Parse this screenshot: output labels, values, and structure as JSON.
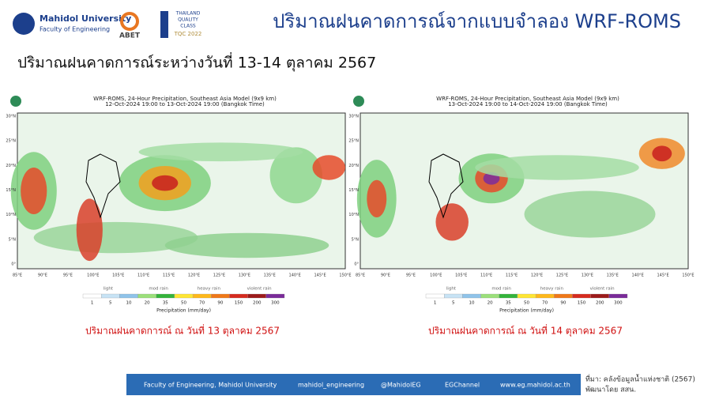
{
  "header": {
    "university": "Mahidol University",
    "faculty": "Faculty of Engineering",
    "abet": "ABET",
    "tqc_line1": "THAILAND",
    "tqc_line2": "QUALITY",
    "tqc_line3": "CLASS",
    "tqc_year": "TQC 2022",
    "title": "ปริมาณฝนคาดการณ์จากแบบจำลอง WRF-ROMS"
  },
  "subtitle": "ปริมาณฝนคาดการณ์ระหว่างวันที่ 13-14 ตุลาคม 2567",
  "maps": [
    {
      "title": "WRF-ROMS, 24-Hour Precipitation, Southeast Asia Model (9x9 km)",
      "period": "12-Oct-2024 19:00 to 13-Oct-2024 19:00 (Bangkok Time)",
      "caption": "ปริมาณฝนคาดการณ์ ณ วันที่ 13 ตุลาคม 2567"
    },
    {
      "title": "WRF-ROMS, 24-Hour Precipitation, Southeast Asia Model (9x9 km)",
      "period": "13-Oct-2024 19:00 to 14-Oct-2024 19:00 (Bangkok Time)",
      "caption": "ปริมาณฝนคาดการณ์ ณ วันที่ 14 ตุลาคม 2567"
    }
  ],
  "lat_labels": [
    "30°N",
    "25°N",
    "20°N",
    "15°N",
    "10°N",
    "5°N",
    "0°"
  ],
  "lon_labels": [
    "85°E",
    "90°E",
    "95°E",
    "100°E",
    "105°E",
    "110°E",
    "115°E",
    "120°E",
    "125°E",
    "130°E",
    "135°E",
    "140°E",
    "145°E",
    "150°E"
  ],
  "colorbar": {
    "classes": [
      "light",
      "mod rain",
      "heavy rain",
      "violent rain"
    ],
    "ticks": [
      1,
      5,
      10,
      20,
      35,
      50,
      70,
      90,
      150,
      200,
      300
    ],
    "label": "Precipitation (mm/day)"
  },
  "footer": {
    "faculty": "Faculty of Engineering, Mahidol University",
    "instagram": "mahidol_engineering",
    "twitter": "@MahidolEG",
    "youtube": "EGChannel",
    "web": "www.eg.mahidol.ac.th"
  },
  "source": {
    "line1": "ที่มา: คลังข้อมูลน้ำแห่งชาติ (2567)",
    "line2": "พัฒนาโดย สสน."
  }
}
